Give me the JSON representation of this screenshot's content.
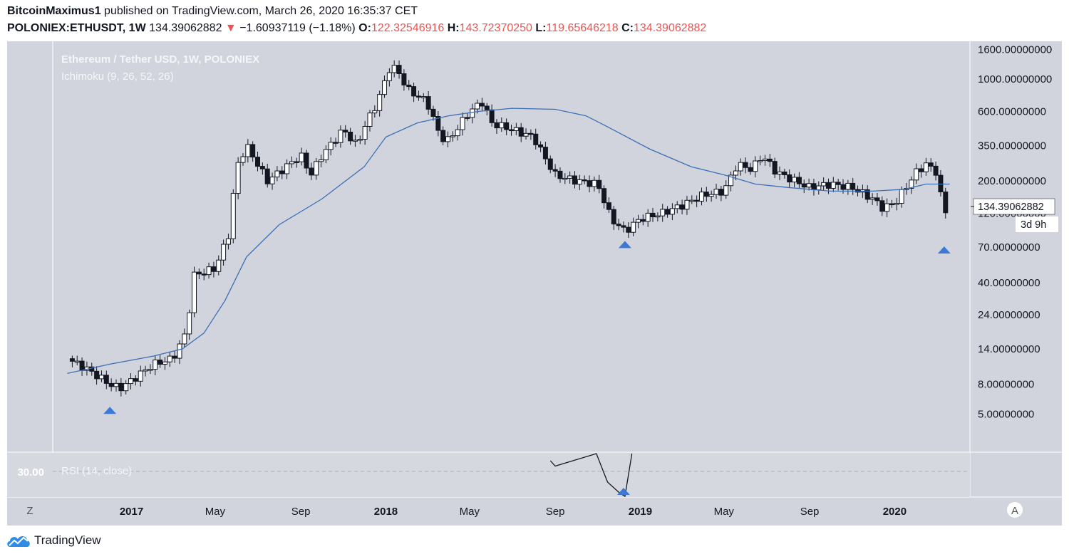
{
  "header": {
    "author": "BitcoinMaximus1",
    "published_text": "published on TradingView.com, March 26, 2020 16:35:37 CET",
    "symbol": "POLONIEX:ETHUSDT, 1W",
    "last_price": "134.39062882",
    "change_arrow": "▼",
    "change": "−1.60937119 (−1.18%)",
    "open_label": "O:",
    "open": "122.32546916",
    "high_label": "H:",
    "high": "143.72370250",
    "low_label": "L:",
    "low": "119.65646218",
    "close_label": "C:",
    "close": "134.39062882"
  },
  "chart_legend": {
    "title": "Ethereum / Tether USD, 1W, POLONIEX",
    "indicator": "Ichimoku (9, 26, 52, 26)"
  },
  "rsi": {
    "label": "RSI (14, close)",
    "level_label": "30.00"
  },
  "price_badge": {
    "price": "134.39062882",
    "countdown": "3d 9h"
  },
  "buttons": {
    "z": "Z",
    "a": "A"
  },
  "brand": "TradingView",
  "colors": {
    "background": "#d1d4dc",
    "panel": "#d6d8e0",
    "cloud_line": "#3b6fb6",
    "marker": "#3b78d8",
    "red": "#ef5350"
  },
  "chart_data": [
    {
      "type": "candlestick",
      "title": "Ethereum / Tether USD, 1W, POLONIEX",
      "y_scale": "log",
      "ylim": [
        3.2,
        1700
      ],
      "y_ticks": [
        "1600.00000000",
        "1000.00000000",
        "600.00000000",
        "350.00000000",
        "200.00000000",
        "120.00000000",
        "70.00000000",
        "40.00000000",
        "24.00000000",
        "14.00000000",
        "8.00000000",
        "5.00000000"
      ],
      "y_tick_values": [
        1600,
        1000,
        600,
        350,
        200,
        120,
        70,
        40,
        24,
        14,
        8,
        5
      ],
      "x_ticks": [
        "2017",
        "May",
        "Sep",
        "2018",
        "May",
        "Sep",
        "2019",
        "May",
        "Sep",
        "2020"
      ],
      "x_tick_dates": [
        "2017-01-01",
        "2017-05-01",
        "2017-09-01",
        "2018-01-01",
        "2018-05-01",
        "2018-09-01",
        "2019-01-01",
        "2019-05-01",
        "2019-09-01",
        "2020-01-01"
      ],
      "x_range": [
        "2016-09-10",
        "2020-04-18"
      ],
      "series": [
        {
          "name": "ETHUSDT",
          "kind": "ohlc_close",
          "x": [
            "2016-10-01",
            "2016-11-01",
            "2016-12-01",
            "2016-12-15",
            "2017-01-01",
            "2017-02-01",
            "2017-03-01",
            "2017-03-20",
            "2017-04-01",
            "2017-05-01",
            "2017-05-20",
            "2017-06-01",
            "2017-06-15",
            "2017-07-01",
            "2017-07-15",
            "2017-08-01",
            "2017-09-01",
            "2017-09-15",
            "2017-10-01",
            "2017-11-01",
            "2017-11-20",
            "2017-12-01",
            "2017-12-20",
            "2018-01-08",
            "2018-01-20",
            "2018-02-01",
            "2018-03-01",
            "2018-03-20",
            "2018-04-01",
            "2018-05-01",
            "2018-05-20",
            "2018-06-01",
            "2018-07-01",
            "2018-08-01",
            "2018-08-15",
            "2018-09-01",
            "2018-10-01",
            "2018-11-01",
            "2018-11-20",
            "2018-12-10",
            "2019-01-01",
            "2019-02-01",
            "2019-03-01",
            "2019-04-01",
            "2019-05-01",
            "2019-05-20",
            "2019-06-10",
            "2019-06-25",
            "2019-07-15",
            "2019-08-01",
            "2019-09-01",
            "2019-10-01",
            "2019-11-01",
            "2019-12-01",
            "2019-12-15",
            "2020-01-01",
            "2020-02-01",
            "2020-02-15",
            "2020-03-01",
            "2020-03-12",
            "2020-03-20"
          ],
          "values": [
            12,
            10,
            8,
            7.5,
            8.5,
            11,
            12,
            18,
            45,
            50,
            85,
            250,
            350,
            260,
            200,
            230,
            300,
            220,
            300,
            450,
            350,
            470,
            700,
            1250,
            1100,
            850,
            700,
            400,
            380,
            600,
            700,
            500,
            450,
            400,
            300,
            220,
            200,
            190,
            110,
            90,
            110,
            120,
            135,
            160,
            170,
            260,
            240,
            300,
            230,
            210,
            180,
            190,
            180,
            150,
            130,
            140,
            230,
            260,
            230,
            118,
            134
          ]
        },
        {
          "name": "Ichimoku (9, 26, 52, 26)",
          "kind": "line",
          "x": [
            "2016-10-01",
            "2016-12-01",
            "2017-02-01",
            "2017-03-15",
            "2017-04-15",
            "2017-05-15",
            "2017-06-15",
            "2017-08-01",
            "2017-10-01",
            "2017-12-01",
            "2018-01-01",
            "2018-02-15",
            "2018-04-01",
            "2018-05-15",
            "2018-07-01",
            "2018-09-01",
            "2018-10-15",
            "2018-11-15",
            "2019-01-15",
            "2019-03-15",
            "2019-05-01",
            "2019-06-15",
            "2019-08-01",
            "2019-10-01",
            "2019-12-01",
            "2020-01-15",
            "2020-02-15",
            "2020-03-20"
          ],
          "values": [
            9.5,
            11,
            12.5,
            14,
            18,
            30,
            60,
            100,
            150,
            250,
            400,
            500,
            560,
            600,
            630,
            620,
            560,
            470,
            330,
            250,
            220,
            190,
            180,
            170,
            170,
            175,
            190,
            190
          ]
        }
      ],
      "annotations": [
        {
          "type": "triangle-up",
          "x": "2016-12-01",
          "y": 5.3
        },
        {
          "type": "triangle-up",
          "x": "2018-12-10",
          "y": 73
        },
        {
          "type": "triangle-up",
          "x": "2020-03-12",
          "y": 67
        }
      ]
    },
    {
      "type": "line",
      "title": "RSI (14, close)",
      "reference_line": 30,
      "series": [
        {
          "name": "RSI (14, close)",
          "x": [
            "2018-08-25",
            "2018-09-01",
            "2018-10-30",
            "2018-11-15",
            "2018-12-02",
            "2018-12-10",
            "2018-12-20"
          ],
          "values": [
            31,
            30.5,
            32,
            29,
            28,
            27,
            32
          ]
        }
      ],
      "annotations": [
        {
          "type": "triangle-up",
          "x": "2018-12-08",
          "y": 26
        }
      ]
    }
  ]
}
